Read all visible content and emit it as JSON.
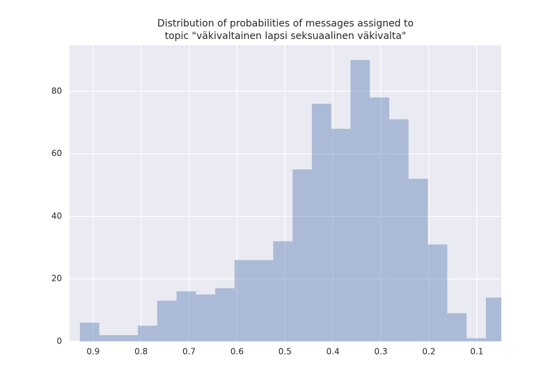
{
  "chart_data": {
    "type": "histogram",
    "title": [
      "Distribution of probabilities of messages assigned to",
      "topic \"väkivaltainen lapsi seksuaalinen väkivalta\""
    ],
    "bins": [
      0.0408,
      0.0811,
      0.1214,
      0.1617,
      0.202,
      0.2424,
      0.2827,
      0.323,
      0.3633,
      0.4036,
      0.4439,
      0.4842,
      0.5245,
      0.5648,
      0.6051,
      0.6454,
      0.6857,
      0.726,
      0.7664,
      0.8067,
      0.847,
      0.8873,
      0.9276
    ],
    "counts": [
      14,
      1,
      9,
      31,
      52,
      71,
      78,
      90,
      68,
      76,
      55,
      32,
      26,
      26,
      17,
      15,
      16,
      13,
      5,
      2,
      2,
      6
    ],
    "color": "#4c72b0",
    "alpha": 0.4,
    "xlim": [
      0.949,
      0.049
    ],
    "xticks": [
      0.9,
      0.8,
      0.7,
      0.6,
      0.5,
      0.4,
      0.3,
      0.2,
      0.1
    ],
    "ylim": [
      0,
      94.7
    ],
    "yticks": [
      0,
      20,
      40,
      60,
      80
    ],
    "grid": true
  }
}
